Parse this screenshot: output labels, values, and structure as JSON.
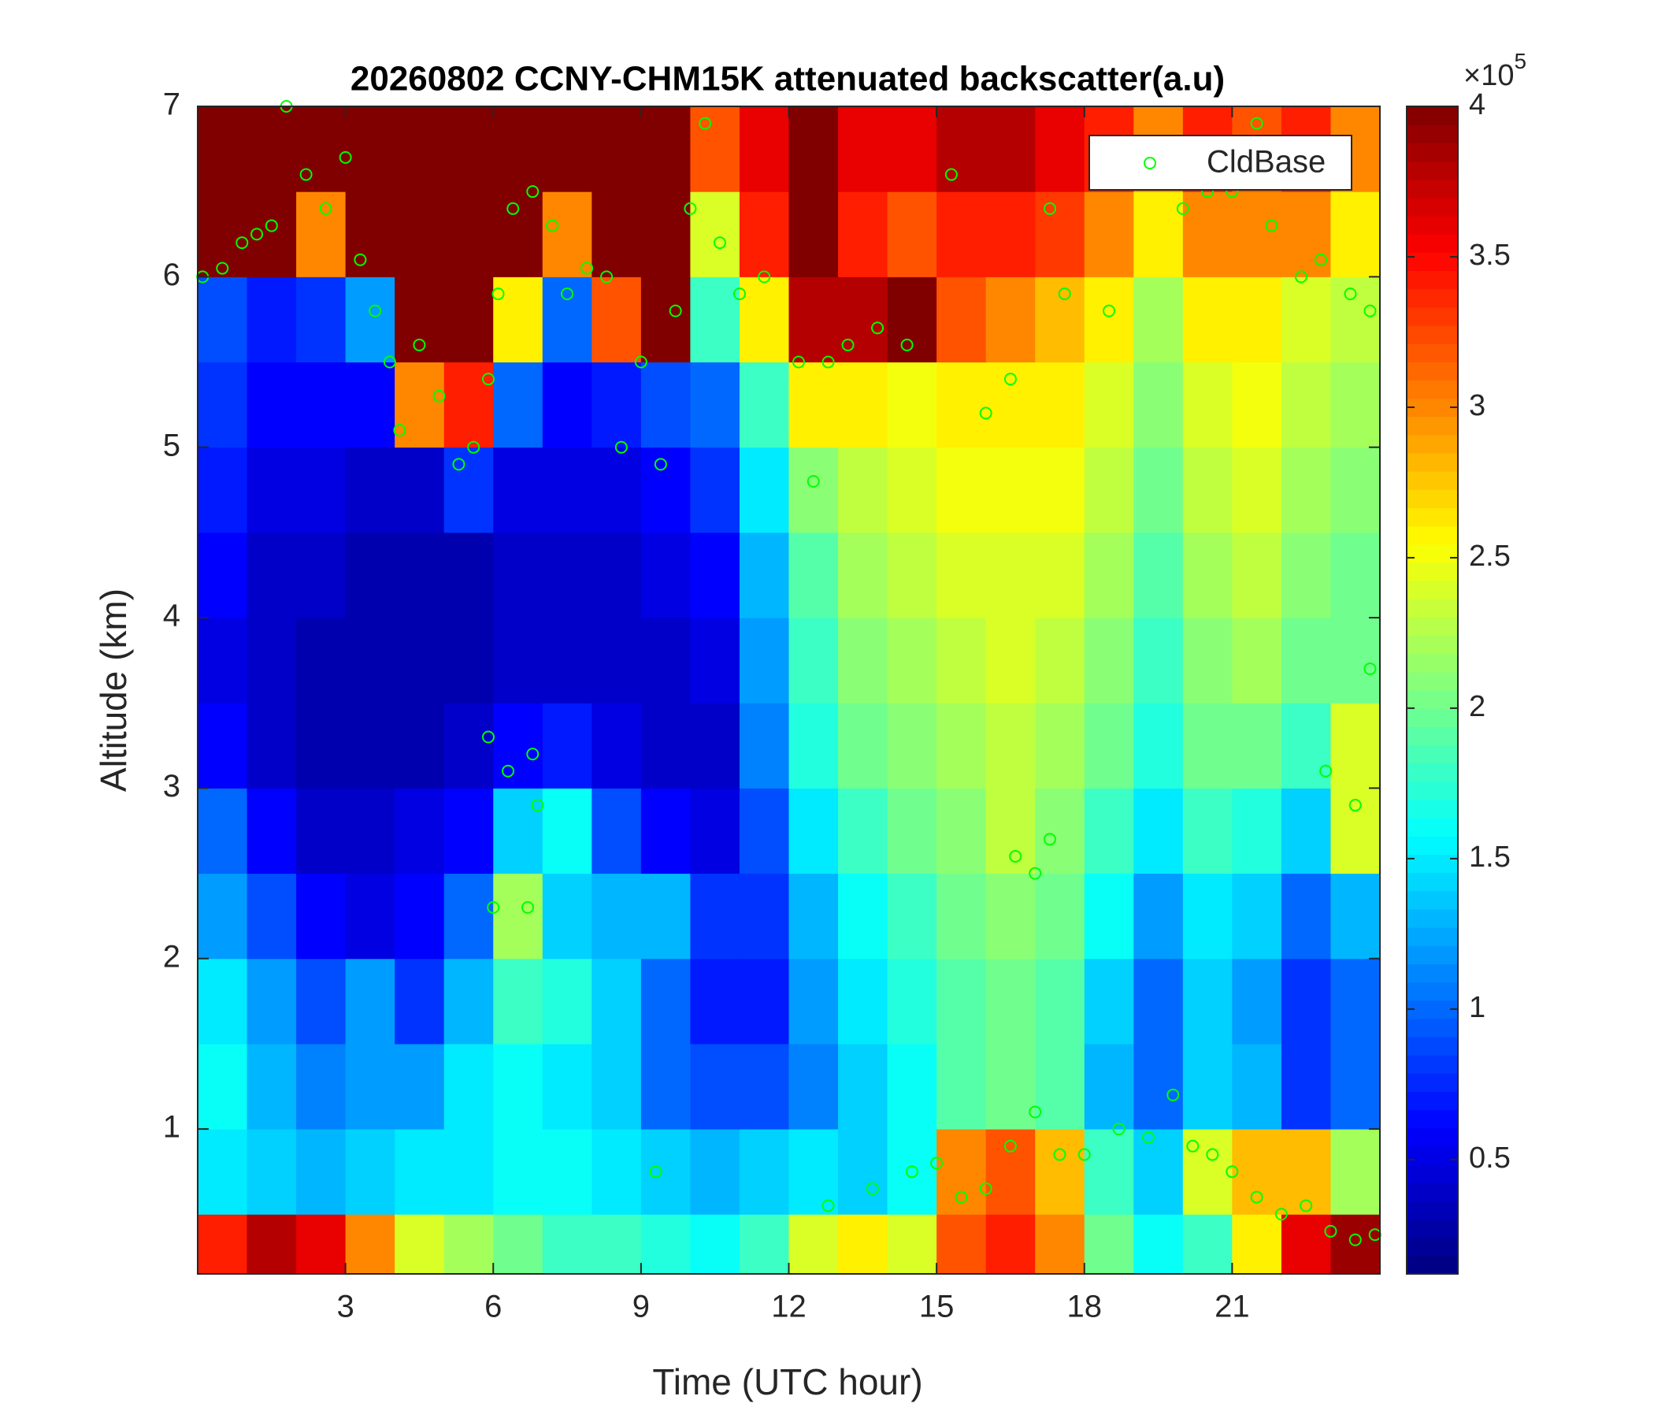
{
  "chart_data": {
    "type": "heatmap",
    "title": "20260802 CCNY-CHM15K attenuated backscatter(a.u)",
    "xlabel": "Time (UTC hour)",
    "ylabel": "Altitude (km)",
    "xlim": [
      0,
      24
    ],
    "ylim": [
      0.15,
      7
    ],
    "xticks": [
      3,
      6,
      9,
      12,
      15,
      18,
      21
    ],
    "yticks": [
      1,
      2,
      3,
      4,
      5,
      6,
      7
    ],
    "x_edges": [
      0,
      1,
      2,
      3,
      4,
      5,
      6,
      7,
      8,
      9,
      10,
      11,
      12,
      13,
      14,
      15,
      16,
      17,
      18,
      19,
      20,
      21,
      22,
      23,
      24
    ],
    "y_edges": [
      0.15,
      0.5,
      1,
      1.5,
      2,
      2.5,
      3,
      3.5,
      4,
      4.5,
      5,
      5.5,
      6,
      6.5,
      7
    ],
    "z": [
      [
        3.4,
        3.8,
        3.6,
        3.0,
        2.4,
        2.2,
        2.0,
        1.8,
        1.8,
        1.7,
        1.6,
        1.8,
        2.4,
        2.6,
        2.4,
        3.2,
        3.4,
        3.0,
        2.0,
        1.6,
        1.8,
        2.6,
        3.6,
        3.9
      ],
      [
        1.5,
        1.4,
        1.3,
        1.4,
        1.5,
        1.5,
        1.6,
        1.6,
        1.5,
        1.4,
        1.3,
        1.4,
        1.5,
        1.4,
        1.6,
        3.0,
        3.2,
        2.8,
        1.8,
        1.4,
        2.4,
        2.8,
        2.8,
        2.2
      ],
      [
        1.6,
        1.3,
        1.1,
        1.2,
        1.2,
        1.5,
        1.6,
        1.5,
        1.4,
        1.0,
        0.9,
        0.9,
        1.1,
        1.4,
        1.6,
        1.9,
        2.0,
        1.9,
        1.3,
        1.0,
        1.4,
        1.3,
        0.8,
        1.0
      ],
      [
        1.5,
        1.2,
        0.9,
        1.2,
        0.8,
        1.3,
        1.8,
        1.7,
        1.4,
        1.0,
        0.7,
        0.7,
        1.2,
        1.5,
        1.7,
        1.9,
        2.0,
        1.9,
        1.4,
        1.0,
        1.4,
        1.2,
        0.8,
        1.0
      ],
      [
        1.2,
        0.9,
        0.6,
        0.5,
        0.6,
        1.0,
        2.2,
        1.4,
        1.3,
        1.3,
        0.8,
        0.8,
        1.3,
        1.6,
        1.8,
        2.0,
        2.1,
        2.0,
        1.6,
        1.2,
        1.5,
        1.4,
        1.0,
        1.3
      ],
      [
        1.0,
        0.6,
        0.4,
        0.4,
        0.5,
        0.6,
        1.4,
        1.6,
        0.9,
        0.6,
        0.5,
        0.9,
        1.5,
        1.8,
        2.0,
        2.1,
        2.3,
        2.1,
        1.8,
        1.5,
        1.8,
        1.7,
        1.4,
        2.4
      ],
      [
        0.6,
        0.4,
        0.3,
        0.3,
        0.3,
        0.4,
        0.6,
        0.7,
        0.5,
        0.4,
        0.4,
        1.1,
        1.7,
        2.0,
        2.1,
        2.2,
        2.3,
        2.2,
        2.0,
        1.7,
        2.0,
        2.0,
        1.8,
        2.4
      ],
      [
        0.5,
        0.4,
        0.3,
        0.3,
        0.3,
        0.3,
        0.4,
        0.4,
        0.4,
        0.4,
        0.5,
        1.2,
        1.8,
        2.1,
        2.2,
        2.3,
        2.4,
        2.3,
        2.1,
        1.8,
        2.1,
        2.2,
        2.0,
        2.0
      ],
      [
        0.6,
        0.4,
        0.4,
        0.3,
        0.3,
        0.3,
        0.4,
        0.4,
        0.4,
        0.5,
        0.6,
        1.3,
        1.9,
        2.2,
        2.3,
        2.4,
        2.4,
        2.4,
        2.2,
        1.9,
        2.2,
        2.3,
        2.1,
        2.0
      ],
      [
        0.7,
        0.5,
        0.5,
        0.4,
        0.4,
        0.8,
        0.5,
        0.5,
        0.5,
        0.6,
        0.8,
        1.5,
        2.1,
        2.3,
        2.4,
        2.5,
        2.5,
        2.5,
        2.3,
        2.0,
        2.3,
        2.4,
        2.2,
        2.1
      ],
      [
        0.8,
        0.6,
        0.6,
        0.6,
        3.0,
        3.4,
        1.0,
        0.6,
        0.7,
        0.9,
        1.0,
        1.8,
        2.6,
        2.6,
        2.5,
        2.6,
        2.6,
        2.6,
        2.4,
        2.1,
        2.4,
        2.5,
        2.3,
        2.2
      ],
      [
        0.9,
        0.7,
        0.8,
        1.2,
        4.0,
        4.0,
        2.6,
        1.0,
        3.2,
        4.0,
        1.8,
        2.6,
        3.8,
        3.8,
        4.0,
        3.2,
        3.0,
        2.8,
        2.6,
        2.2,
        2.6,
        2.6,
        2.4,
        2.3
      ],
      [
        4.0,
        4.0,
        3.0,
        4.0,
        4.0,
        4.0,
        4.0,
        3.0,
        4.0,
        4.0,
        2.4,
        3.4,
        4.0,
        3.4,
        3.2,
        3.4,
        3.4,
        3.3,
        3.0,
        2.6,
        3.0,
        3.0,
        3.0,
        2.6
      ],
      [
        4.0,
        4.0,
        4.0,
        4.0,
        4.0,
        4.0,
        4.0,
        4.0,
        4.0,
        4.0,
        3.2,
        3.6,
        4.0,
        3.6,
        3.6,
        3.8,
        3.8,
        3.6,
        3.4,
        3.0,
        3.4,
        3.2,
        3.4,
        3.0
      ]
    ],
    "colormap": "jet",
    "clim": [
      0.12,
      4
    ],
    "cticks": [
      0.5,
      1,
      1.5,
      2,
      2.5,
      3,
      3.5,
      4
    ],
    "colorbar_multiplier": {
      "base": "×10",
      "exponent": "5"
    },
    "legend": "upper right",
    "series": [
      {
        "name": "CldBase",
        "type": "scatter",
        "color": "#00ff00",
        "x": [
          0.1,
          0.5,
          0.9,
          1.2,
          1.5,
          1.8,
          2.2,
          2.6,
          3.0,
          3.3,
          3.6,
          3.9,
          4.1,
          4.5,
          4.9,
          5.3,
          5.6,
          5.9,
          6.1,
          6.4,
          6.8,
          7.2,
          7.5,
          7.9,
          8.3,
          8.6,
          9.0,
          9.4,
          9.7,
          10.0,
          10.3,
          10.6,
          11.0,
          11.5,
          12.2,
          12.5,
          12.8,
          13.2,
          13.8,
          14.4,
          15.3,
          16.0,
          16.5,
          17.3,
          17.6,
          18.5,
          20.0,
          20.5,
          21.0,
          21.5,
          21.8,
          22.4,
          22.8,
          23.4,
          23.8,
          5.9,
          6.3,
          6.8,
          6.9,
          6.0,
          6.7,
          16.6,
          17.0,
          17.3,
          22.9,
          23.5,
          23.8,
          9.3,
          12.8,
          13.7,
          14.5,
          15.0,
          15.5,
          16.0,
          16.5,
          17.0,
          17.5,
          18.0,
          18.7,
          19.3,
          19.8,
          20.2,
          20.6,
          21.0,
          21.5,
          22.0,
          22.5,
          23.0,
          23.5,
          23.9
        ],
        "y": [
          6.0,
          6.05,
          6.2,
          6.25,
          6.3,
          7.0,
          6.6,
          6.4,
          6.7,
          6.1,
          5.8,
          5.5,
          5.1,
          5.6,
          5.3,
          4.9,
          5.0,
          5.4,
          5.9,
          6.4,
          6.5,
          6.3,
          5.9,
          6.05,
          6.0,
          5.0,
          5.5,
          4.9,
          5.8,
          6.4,
          6.9,
          6.2,
          5.9,
          6.0,
          5.5,
          4.8,
          5.5,
          5.6,
          5.7,
          5.6,
          6.6,
          5.2,
          5.4,
          6.4,
          5.9,
          5.8,
          6.4,
          6.5,
          6.5,
          6.9,
          6.3,
          6.0,
          6.1,
          5.9,
          5.8,
          3.3,
          3.1,
          3.2,
          2.9,
          2.3,
          2.3,
          2.6,
          2.5,
          2.7,
          3.1,
          2.9,
          3.7,
          0.75,
          0.55,
          0.65,
          0.75,
          0.8,
          0.6,
          0.65,
          0.9,
          1.1,
          0.85,
          0.85,
          1.0,
          0.95,
          1.2,
          0.9,
          0.85,
          0.75,
          0.6,
          0.5,
          0.55,
          0.4,
          0.35,
          0.38
        ]
      }
    ]
  }
}
